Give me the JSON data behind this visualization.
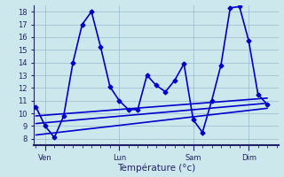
{
  "xlabel": "Température (°c)",
  "background_color": "#cce8ec",
  "grid_color": "#99bbcc",
  "line_color": "#0000cc",
  "ylim": [
    7.5,
    18.5
  ],
  "yticks": [
    8,
    9,
    10,
    11,
    12,
    13,
    14,
    15,
    16,
    17,
    18
  ],
  "day_labels": [
    "Ven",
    "Lun",
    "Sam",
    "Dim"
  ],
  "day_positions": [
    1,
    9,
    17,
    23
  ],
  "xlim": [
    -0.2,
    26.2
  ],
  "series_main": {
    "x": [
      0,
      1,
      2,
      3,
      4,
      5,
      6,
      7,
      8,
      9,
      10,
      11,
      12,
      13,
      14,
      15,
      16,
      17,
      18,
      19,
      20,
      21,
      22,
      23,
      24,
      25
    ],
    "y": [
      10.5,
      9.0,
      8.1,
      9.8,
      14.0,
      17.0,
      18.0,
      15.2,
      12.1,
      11.0,
      10.3,
      10.3,
      13.0,
      12.2,
      11.7,
      12.6,
      13.9,
      9.5,
      8.5,
      11.0,
      13.8,
      18.3,
      18.4,
      15.7,
      11.5,
      10.7
    ]
  },
  "trend_lines": [
    {
      "x": [
        0,
        25
      ],
      "y": [
        9.2,
        10.8
      ]
    },
    {
      "x": [
        0,
        25
      ],
      "y": [
        8.3,
        10.4
      ]
    },
    {
      "x": [
        0,
        25
      ],
      "y": [
        9.8,
        11.2
      ]
    }
  ],
  "marker": "D",
  "markersize": 2.5,
  "linewidth": 1.2,
  "trend_linewidth": 1.2,
  "fontsize_ticks": 6,
  "fontsize_xlabel": 7.5,
  "tick_color": "#222266",
  "label_color": "#222266"
}
